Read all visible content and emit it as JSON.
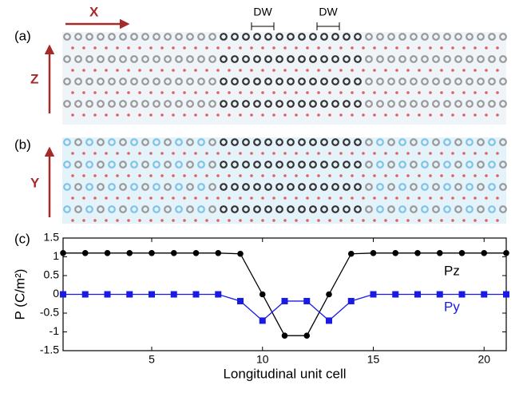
{
  "panels": {
    "a": "(a)",
    "b": "(b)",
    "c": "(c)"
  },
  "axes_arrows": {
    "x": "X",
    "z": "Z",
    "y": "Y"
  },
  "domain_walls": [
    "DW",
    "DW"
  ],
  "chart_data": {
    "type": "line",
    "xlabel": "Longitudinal unit cell",
    "ylabel": "P (C/m²)",
    "x": [
      1,
      2,
      3,
      4,
      5,
      6,
      7,
      8,
      9,
      10,
      11,
      12,
      13,
      14,
      15,
      16,
      17,
      18,
      19,
      20,
      21
    ],
    "series": [
      {
        "name": "Pz",
        "color": "#000000",
        "marker": "circle",
        "values": [
          1.1,
          1.1,
          1.1,
          1.1,
          1.1,
          1.1,
          1.1,
          1.1,
          1.08,
          0,
          -1.1,
          -1.1,
          0,
          1.08,
          1.1,
          1.1,
          1.1,
          1.1,
          1.1,
          1.1,
          1.1
        ]
      },
      {
        "name": "Py",
        "color": "#1a1ae6",
        "marker": "square",
        "values": [
          0,
          0,
          0,
          0,
          0,
          0,
          0,
          0,
          -0.18,
          -0.7,
          -0.18,
          -0.18,
          -0.7,
          -0.18,
          0,
          0,
          0,
          0,
          0,
          0,
          0
        ]
      }
    ],
    "xlim": [
      1,
      21
    ],
    "xticks": [
      5,
      10,
      15,
      20
    ],
    "ylim": [
      -1.5,
      1.5
    ],
    "yticks": [
      1.5,
      1,
      0.5,
      0,
      -0.5,
      -1,
      -1.5
    ]
  }
}
